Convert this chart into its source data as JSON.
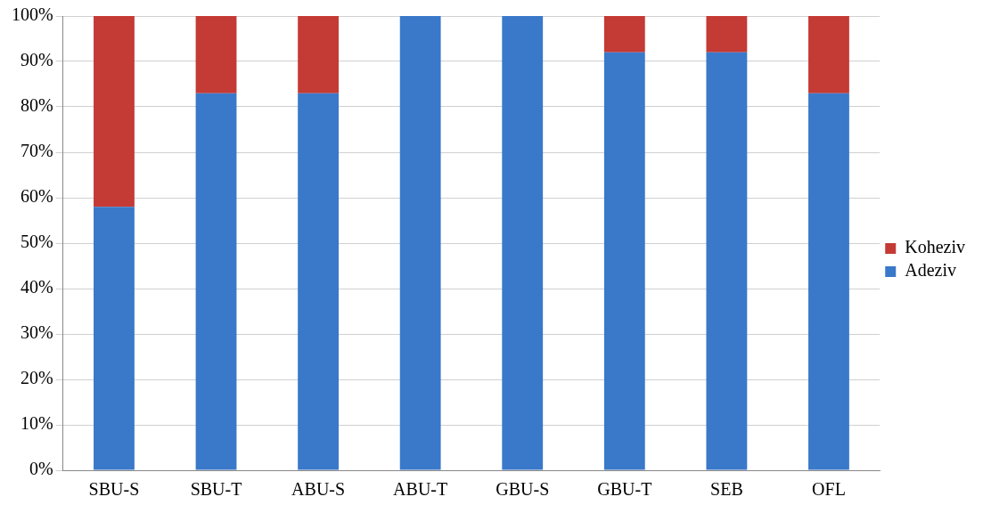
{
  "chart_data": {
    "type": "bar",
    "stacked": true,
    "categories": [
      "SBU-S",
      "SBU-T",
      "ABU-S",
      "ABU-T",
      "GBU-S",
      "GBU-T",
      "SEB",
      "OFL"
    ],
    "series": [
      {
        "name": "Adeziv",
        "color": "#3a78c9",
        "values": [
          58,
          83,
          83,
          100,
          100,
          92,
          92,
          83
        ]
      },
      {
        "name": "Koheziv",
        "color": "#c43a35",
        "values": [
          42,
          17,
          17,
          0,
          0,
          8,
          8,
          17
        ]
      }
    ],
    "ylim": [
      0,
      100
    ],
    "yticks": [
      {
        "value": 0,
        "label": "0%"
      },
      {
        "value": 10,
        "label": "10%"
      },
      {
        "value": 20,
        "label": "20%"
      },
      {
        "value": 30,
        "label": "30%"
      },
      {
        "value": 40,
        "label": "40%"
      },
      {
        "value": 50,
        "label": "50%"
      },
      {
        "value": 60,
        "label": "60%"
      },
      {
        "value": 70,
        "label": "70%"
      },
      {
        "value": 80,
        "label": "80%"
      },
      {
        "value": 90,
        "label": "90%"
      },
      {
        "value": 100,
        "label": "100%"
      }
    ],
    "grid": "y",
    "legend": "right"
  }
}
